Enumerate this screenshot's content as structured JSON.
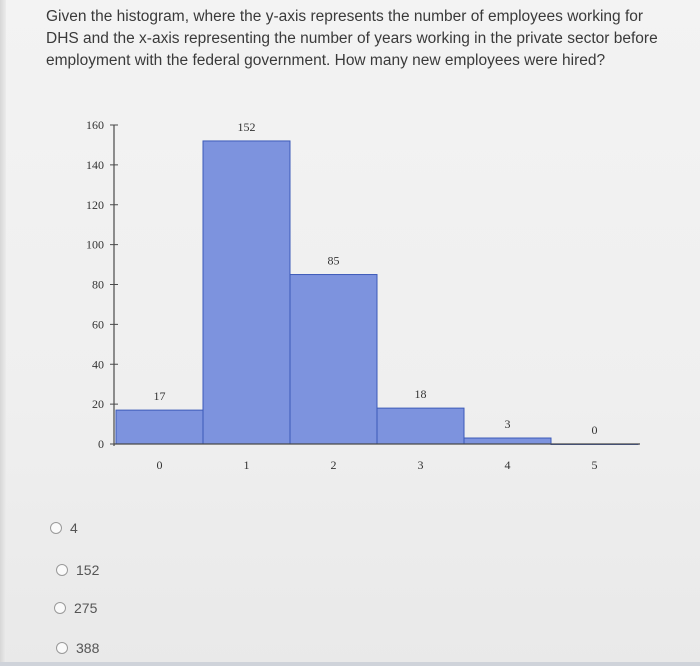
{
  "question": {
    "text": "Given the histogram, where the y-axis represents the number of employees working for DHS and the x-axis representing the number of years working in the private sector before employment with the federal government.  How many new employees were hired?"
  },
  "chart_data": {
    "type": "bar",
    "title": "",
    "xlabel": "",
    "ylabel": "",
    "categories": [
      "0",
      "1",
      "2",
      "3",
      "4",
      "5"
    ],
    "values": [
      17,
      152,
      85,
      18,
      3,
      0
    ],
    "data_labels": [
      "17",
      "152",
      "85",
      "18",
      "3",
      "0"
    ],
    "y_ticks": [
      "0",
      "20",
      "40",
      "60",
      "80",
      "100",
      "120",
      "140",
      "160"
    ],
    "x_ticks": [
      "0",
      "1",
      "2",
      "3",
      "4",
      "5"
    ],
    "ylim": [
      0,
      160
    ],
    "grid": false,
    "colors": {
      "bar": "#7d93de",
      "bar_edge": "#3c5ab8",
      "axis": "#4a4a4a",
      "text": "#333333"
    }
  },
  "options": [
    {
      "label": "4"
    },
    {
      "label": "152"
    },
    {
      "label": "275"
    },
    {
      "label": "388"
    }
  ]
}
